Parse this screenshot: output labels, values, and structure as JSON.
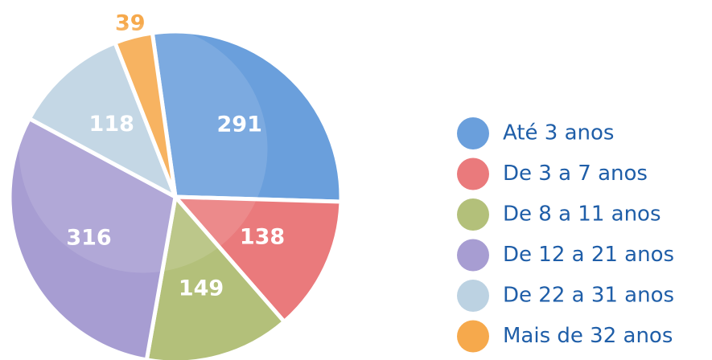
{
  "chart_data": {
    "type": "pie",
    "categories": [
      "Até 3 anos",
      "De 3 a 7 anos",
      "De 8 a 11 anos",
      "De 12 a 21 anos",
      "De 22 a 31 anos",
      "Mais de 32 anos"
    ],
    "values": [
      291,
      138,
      149,
      316,
      118,
      39
    ],
    "colors": [
      "#6a9fdc",
      "#ea7a7c",
      "#b3c07a",
      "#a79dd2",
      "#bcd2e2",
      "#f6a94c"
    ],
    "legend": "right"
  }
}
